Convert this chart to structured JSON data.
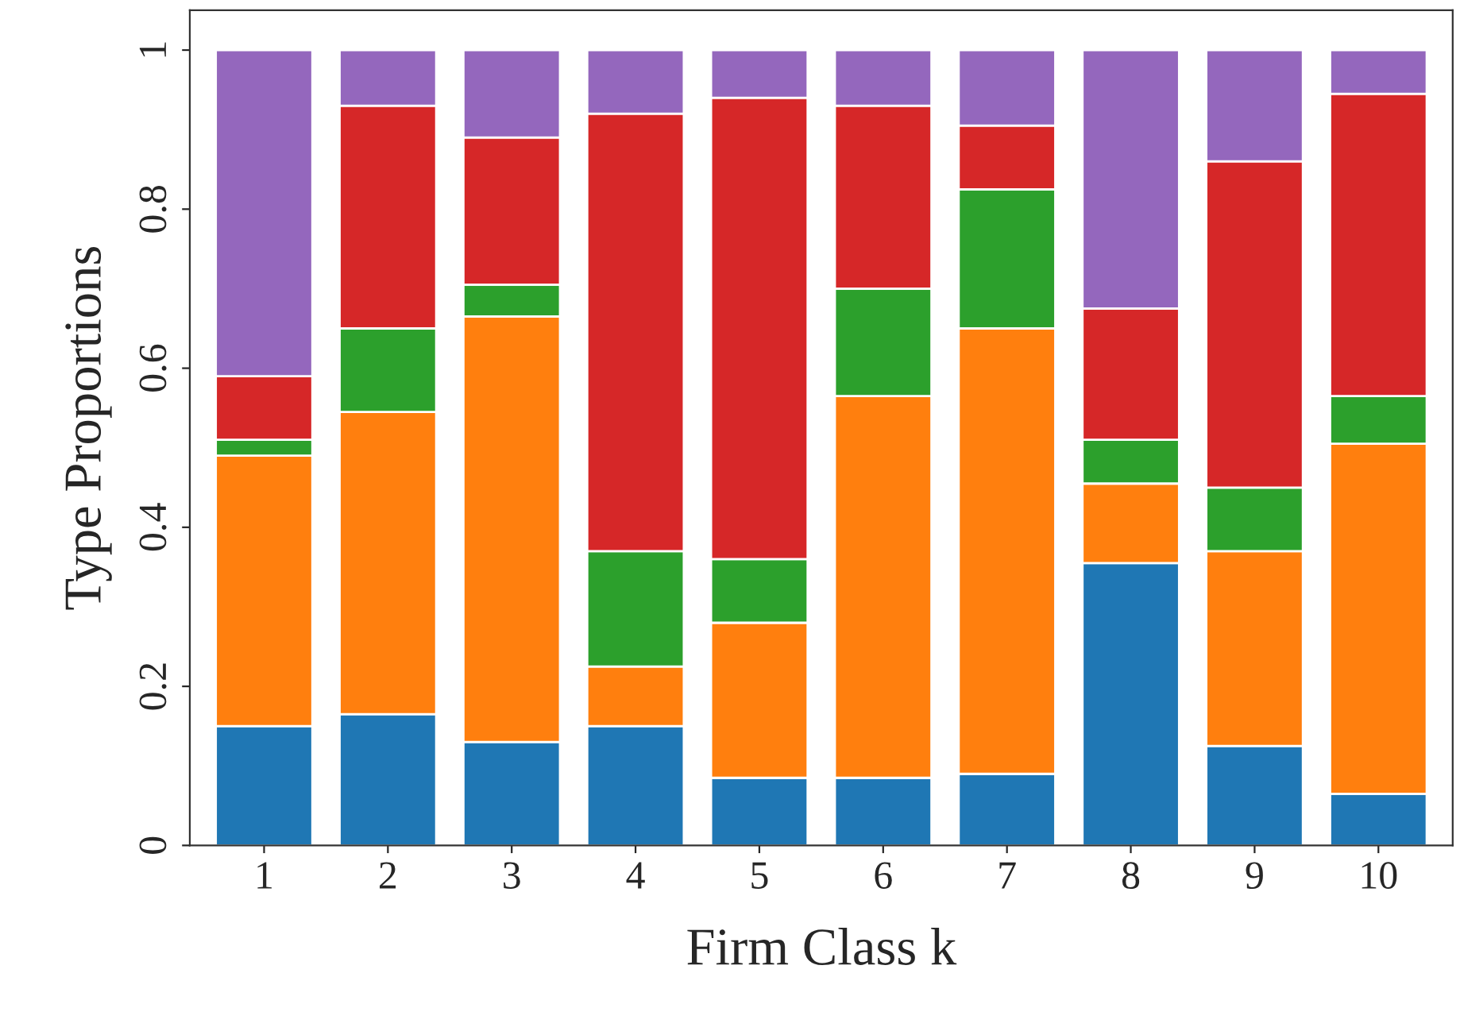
{
  "chart_data": {
    "type": "bar",
    "stacked": true,
    "xlabel": "Firm Class k",
    "ylabel": "Type Proportions",
    "categories": [
      "1",
      "2",
      "3",
      "4",
      "5",
      "6",
      "7",
      "8",
      "9",
      "10"
    ],
    "series": [
      {
        "color": "#1f77b4",
        "values": [
          0.15,
          0.165,
          0.13,
          0.15,
          0.085,
          0.085,
          0.09,
          0.355,
          0.125,
          0.065
        ]
      },
      {
        "color": "#ff7f0e",
        "values": [
          0.34,
          0.38,
          0.535,
          0.075,
          0.195,
          0.48,
          0.56,
          0.1,
          0.245,
          0.44
        ]
      },
      {
        "color": "#2ca02c",
        "values": [
          0.02,
          0.105,
          0.04,
          0.145,
          0.08,
          0.135,
          0.175,
          0.055,
          0.08,
          0.06
        ]
      },
      {
        "color": "#d62728",
        "values": [
          0.08,
          0.28,
          0.185,
          0.55,
          0.58,
          0.23,
          0.08,
          0.165,
          0.41,
          0.38
        ]
      },
      {
        "color": "#9467bd",
        "values": [
          0.41,
          0.07,
          0.11,
          0.08,
          0.06,
          0.07,
          0.095,
          0.325,
          0.14,
          0.055
        ]
      }
    ],
    "ylim": [
      0,
      1.05
    ],
    "yticks": [
      0,
      0.2,
      0.4,
      0.6,
      0.8,
      1
    ],
    "grid": false,
    "legend": false
  }
}
